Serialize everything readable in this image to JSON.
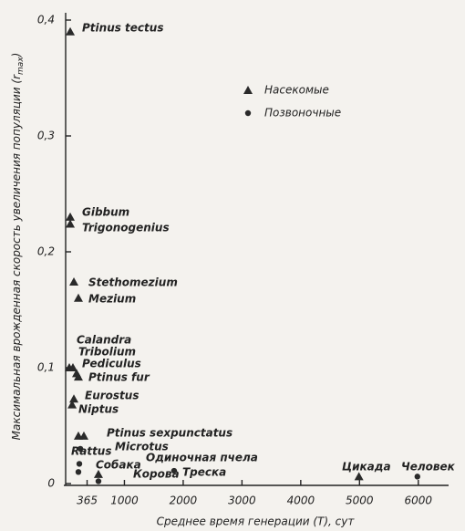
{
  "chart_data": {
    "type": "scatter",
    "xlabel": "Среднее время генерации (T), сут",
    "ylabel": "Максимальная врожденная скорость увеличения популяции (r",
    "ylabel_sub": "max",
    "ylabel_end": ")",
    "xlim": [
      0,
      6500
    ],
    "ylim": [
      0,
      0.4
    ],
    "xticks": [
      365,
      1000,
      2000,
      3000,
      4000,
      5000,
      6000
    ],
    "yticks": [
      0,
      {
        "value": 0.1,
        "label": "0,1"
      },
      {
        "value": 0.2,
        "label": "0,2"
      },
      {
        "value": 0.3,
        "label": "0,3"
      },
      {
        "value": 0.4,
        "label": "0,4"
      }
    ],
    "grid": false,
    "legend": "upper right",
    "series": [
      {
        "name": "Насекомые",
        "marker": "triangle",
        "color": "#2a2a2a",
        "x": [
          78,
          78,
          78,
          140,
          217,
          62,
          124,
          186,
          217,
          140,
          110,
          310,
          217,
          558,
          4990
        ],
        "values": [
          0.39,
          0.23,
          0.224,
          0.174,
          0.16,
          0.1,
          0.1,
          0.095,
          0.092,
          0.073,
          0.068,
          0.041,
          0.041,
          0.008,
          0.006
        ],
        "labels": [
          "Ptinus tectus",
          "Gibbum",
          "Trigonogenius",
          "Stethomezium",
          "Mezium",
          "Calandra",
          "Tribolium",
          "Pediculus",
          "Ptinus fur",
          "Eurostus",
          "Niptus",
          "Ptinus sexpunctatus",
          null,
          "Одиночная пчела",
          "Цикада"
        ]
      },
      {
        "name": "Позвоночные",
        "marker": "circle",
        "color": "#2a2a2a",
        "x": [
          250,
          233,
          217,
          558,
          1845,
          5985
        ],
        "values": [
          0.03,
          0.017,
          0.01,
          0.002,
          0.011,
          0.006
        ],
        "labels": [
          "Microtus",
          "Rattus",
          "Собака",
          "Корова",
          "Треска",
          "Человек"
        ]
      }
    ]
  }
}
